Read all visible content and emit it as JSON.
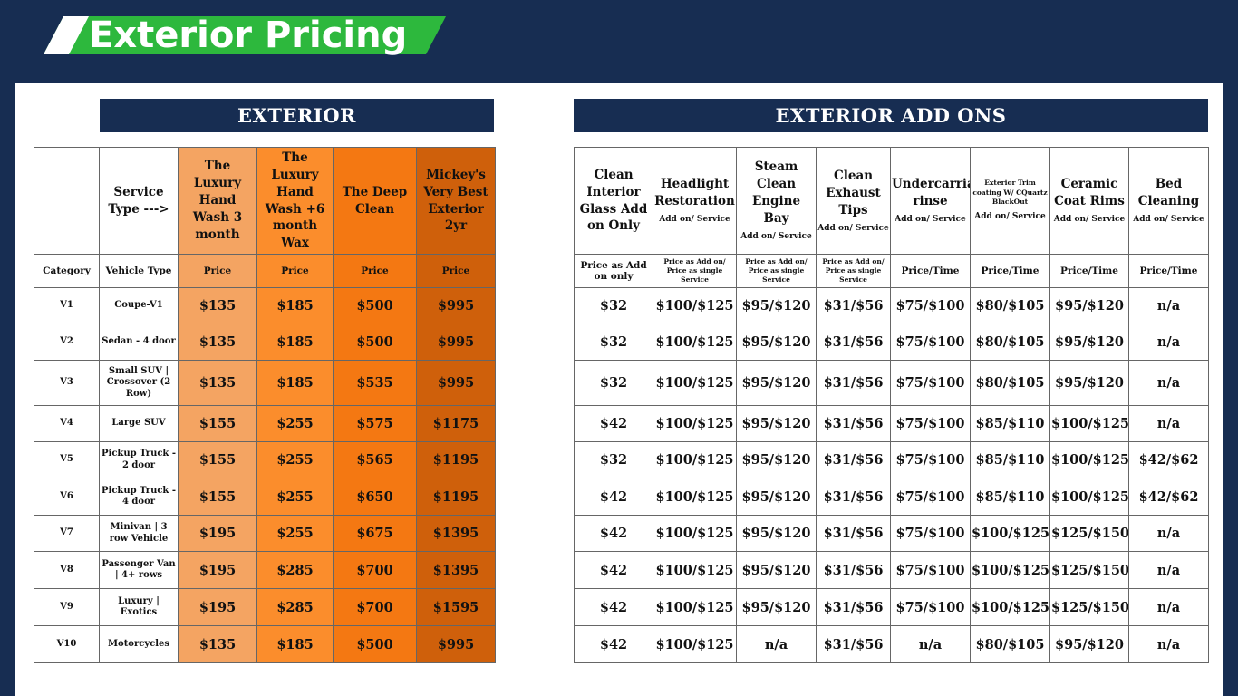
{
  "header": {
    "title": "Exterior Pricing"
  },
  "exterior": {
    "heading": "EXTERIOR",
    "columns": [
      "Service Type --->",
      "The Luxury Hand Wash 3 month",
      "The Luxury Hand Wash +6 month Wax",
      "The Deep Clean",
      "Mickey's Very Best Exterior 2yr"
    ],
    "subheader": [
      "Category",
      "Vehicle Type",
      "Price",
      "Price",
      "Price",
      "Price"
    ],
    "rows": [
      [
        "V1",
        "Coupe-V1",
        "$135",
        "$185",
        "$500",
        "$995"
      ],
      [
        "V2",
        "Sedan - 4 door",
        "$135",
        "$185",
        "$500",
        "$995"
      ],
      [
        "V3",
        "Small SUV | Crossover (2 Row)",
        "$135",
        "$185",
        "$535",
        "$995"
      ],
      [
        "V4",
        "Large SUV",
        "$155",
        "$255",
        "$575",
        "$1175"
      ],
      [
        "V5",
        "Pickup Truck - 2 door",
        "$155",
        "$255",
        "$565",
        "$1195"
      ],
      [
        "V6",
        "Pickup Truck - 4 door",
        "$155",
        "$255",
        "$650",
        "$1195"
      ],
      [
        "V7",
        "Minivan | 3 row Vehicle",
        "$195",
        "$255",
        "$675",
        "$1395"
      ],
      [
        "V8",
        "Passenger Van | 4+ rows",
        "$195",
        "$285",
        "$700",
        "$1395"
      ],
      [
        "V9",
        "Luxury | Exotics",
        "$195",
        "$285",
        "$700",
        "$1595"
      ],
      [
        "V10",
        "Motorcycles",
        "$135",
        "$185",
        "$500",
        "$995"
      ]
    ]
  },
  "addons": {
    "heading": "EXTERIOR ADD ONS",
    "columns": [
      {
        "name": "Clean Interior Glass Add on Only"
      },
      {
        "name": "Headlight Restoration",
        "note": "Add on/ Service"
      },
      {
        "name": "Steam Clean Engine Bay",
        "note": "Add on/ Service"
      },
      {
        "name": "Clean Exhaust Tips",
        "note": "Add on/ Service"
      },
      {
        "name": "Undercarriage rinse",
        "note": "Add on/ Service"
      },
      {
        "name": "Exterior Trim coating W/ CQuartz BlackOut",
        "note": "Add on/ Service"
      },
      {
        "name": "Ceramic Coat Rims",
        "note": "Add on/ Service"
      },
      {
        "name": "Bed Cleaning",
        "note": "Add on/ Service"
      }
    ],
    "subheader": [
      "Price as Add on only",
      "Price as Add on/ Price as single Service",
      "Price as Add on/ Price as single Service",
      "Price as Add on/ Price as single Service",
      "Price/Time",
      "Price/Time",
      "Price/Time",
      "Price/Time"
    ],
    "rows": [
      [
        "$32",
        "$100/$125",
        "$95/$120",
        "$31/$56",
        "$75/$100",
        "$80/$105",
        "$95/$120",
        "n/a"
      ],
      [
        "$32",
        "$100/$125",
        "$95/$120",
        "$31/$56",
        "$75/$100",
        "$80/$105",
        "$95/$120",
        "n/a"
      ],
      [
        "$32",
        "$100/$125",
        "$95/$120",
        "$31/$56",
        "$75/$100",
        "$80/$105",
        "$95/$120",
        "n/a"
      ],
      [
        "$42",
        "$100/$125",
        "$95/$120",
        "$31/$56",
        "$75/$100",
        "$85/$110",
        "$100/$125",
        "n/a"
      ],
      [
        "$32",
        "$100/$125",
        "$95/$120",
        "$31/$56",
        "$75/$100",
        "$85/$110",
        "$100/$125",
        "$42/$62"
      ],
      [
        "$42",
        "$100/$125",
        "$95/$120",
        "$31/$56",
        "$75/$100",
        "$85/$110",
        "$100/$125",
        "$42/$62"
      ],
      [
        "$42",
        "$100/$125",
        "$95/$120",
        "$31/$56",
        "$75/$100",
        "$100/$125",
        "$125/$150",
        "n/a"
      ],
      [
        "$42",
        "$100/$125",
        "$95/$120",
        "$31/$56",
        "$75/$100",
        "$100/$125",
        "$125/$150",
        "n/a"
      ],
      [
        "$42",
        "$100/$125",
        "$95/$120",
        "$31/$56",
        "$75/$100",
        "$100/$125",
        "$125/$150",
        "n/a"
      ],
      [
        "$42",
        "$100/$125",
        "n/a",
        "$31/$56",
        "n/a",
        "$80/$105",
        "$95/$120",
        "n/a"
      ]
    ]
  }
}
